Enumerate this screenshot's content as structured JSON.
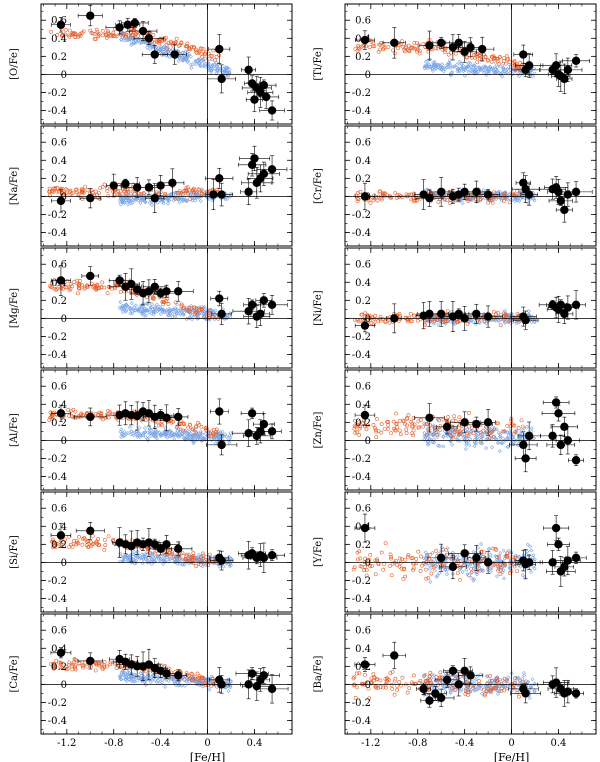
{
  "colors": {
    "thin_disk": "#7aa6e8",
    "thick_disk": "#e8602c",
    "star": "#000000"
  },
  "x_axis": {
    "label": "[Fe/H]",
    "range": [
      -1.42,
      0.72
    ],
    "ticks": [
      -1.2,
      -0.8,
      -0.4,
      0,
      0.4
    ],
    "tick_labels": [
      "-1.2",
      "-0.8",
      "-0.4",
      "0",
      "0.4"
    ]
  },
  "y_axis": {
    "range": [
      -0.55,
      0.78
    ],
    "ticks": [
      -0.4,
      -0.2,
      0,
      0.2,
      0.4,
      0.6
    ],
    "tick_labels": [
      "-0.4",
      "-0.2",
      "0",
      "0.2",
      "0.4",
      "0.6"
    ]
  },
  "chart_data": [
    {
      "type": "scatter",
      "panel": "O",
      "ylabel": "[O/Fe]",
      "stars": [
        [
          -1.25,
          0.55
        ],
        [
          -1.0,
          0.65
        ],
        [
          -0.75,
          0.52
        ],
        [
          -0.68,
          0.55
        ],
        [
          -0.62,
          0.57
        ],
        [
          -0.55,
          0.48
        ],
        [
          -0.5,
          0.4
        ],
        [
          -0.45,
          0.22
        ],
        [
          -0.28,
          0.22
        ],
        [
          0.1,
          0.28
        ],
        [
          0.12,
          -0.05
        ],
        [
          0.35,
          0.05
        ],
        [
          0.38,
          -0.1
        ],
        [
          0.4,
          -0.28
        ],
        [
          0.42,
          -0.15
        ],
        [
          0.45,
          -0.2
        ],
        [
          0.48,
          -0.12
        ],
        [
          0.5,
          -0.25
        ],
        [
          0.55,
          -0.4
        ]
      ]
    },
    {
      "type": "scatter",
      "panel": "Ti",
      "ylabel": "[Ti/Fe]",
      "stars": [
        [
          -1.25,
          0.38
        ],
        [
          -1.0,
          0.35
        ],
        [
          -0.7,
          0.32
        ],
        [
          -0.6,
          0.35
        ],
        [
          -0.5,
          0.3
        ],
        [
          -0.45,
          0.35
        ],
        [
          -0.4,
          0.25
        ],
        [
          -0.35,
          0.3
        ],
        [
          -0.25,
          0.28
        ],
        [
          0.1,
          0.22
        ],
        [
          0.12,
          0.05
        ],
        [
          0.15,
          0.1
        ],
        [
          0.35,
          0.05
        ],
        [
          0.38,
          0.1
        ],
        [
          0.4,
          0.0
        ],
        [
          0.42,
          -0.02
        ],
        [
          0.45,
          -0.05
        ],
        [
          0.48,
          0.05
        ],
        [
          0.55,
          0.15
        ]
      ]
    },
    {
      "type": "scatter",
      "panel": "Na",
      "ylabel": "[Na/Fe]",
      "stars": [
        [
          -1.25,
          -0.05
        ],
        [
          -1.0,
          -0.02
        ],
        [
          -0.8,
          0.12
        ],
        [
          -0.7,
          0.14
        ],
        [
          -0.6,
          0.1
        ],
        [
          -0.5,
          0.1
        ],
        [
          -0.45,
          -0.02
        ],
        [
          -0.4,
          0.12
        ],
        [
          -0.3,
          0.15
        ],
        [
          0.05,
          0.02
        ],
        [
          0.1,
          0.2
        ],
        [
          0.12,
          0.02
        ],
        [
          0.35,
          0.05
        ],
        [
          0.38,
          0.35
        ],
        [
          0.4,
          0.42
        ],
        [
          0.42,
          0.15
        ],
        [
          0.45,
          0.2
        ],
        [
          0.48,
          0.25
        ],
        [
          0.55,
          0.3
        ]
      ]
    },
    {
      "type": "scatter",
      "panel": "Cr",
      "ylabel": "[Cr/Fe]",
      "stars": [
        [
          -1.25,
          0.0
        ],
        [
          -0.75,
          0.02
        ],
        [
          -0.7,
          -0.02
        ],
        [
          -0.6,
          0.05
        ],
        [
          -0.5,
          0.0
        ],
        [
          -0.45,
          0.02
        ],
        [
          -0.4,
          0.05
        ],
        [
          -0.3,
          0.05
        ],
        [
          -0.2,
          0.02
        ],
        [
          0.1,
          0.15
        ],
        [
          0.12,
          0.08
        ],
        [
          0.15,
          0.02
        ],
        [
          0.35,
          0.08
        ],
        [
          0.38,
          0.1
        ],
        [
          0.4,
          0.05
        ],
        [
          0.42,
          -0.05
        ],
        [
          0.45,
          -0.15
        ],
        [
          0.48,
          0.02
        ],
        [
          0.55,
          0.05
        ]
      ]
    },
    {
      "type": "scatter",
      "panel": "Mg",
      "ylabel": "[Mg/Fe]",
      "stars": [
        [
          -1.25,
          0.42
        ],
        [
          -1.0,
          0.47
        ],
        [
          -0.75,
          0.42
        ],
        [
          -0.7,
          0.35
        ],
        [
          -0.65,
          0.38
        ],
        [
          -0.6,
          0.32
        ],
        [
          -0.55,
          0.28
        ],
        [
          -0.5,
          0.3
        ],
        [
          -0.45,
          0.35
        ],
        [
          -0.4,
          0.28
        ],
        [
          -0.35,
          0.3
        ],
        [
          -0.25,
          0.3
        ],
        [
          0.1,
          0.22
        ],
        [
          0.12,
          0.05
        ],
        [
          0.35,
          0.08
        ],
        [
          0.38,
          0.15
        ],
        [
          0.42,
          0.02
        ],
        [
          0.45,
          0.05
        ],
        [
          0.48,
          0.2
        ],
        [
          0.55,
          0.15
        ]
      ]
    },
    {
      "type": "scatter",
      "panel": "Ni",
      "ylabel": "[Ni/Fe]",
      "stars": [
        [
          -1.25,
          -0.08
        ],
        [
          -1.0,
          0.0
        ],
        [
          -0.75,
          0.03
        ],
        [
          -0.7,
          0.05
        ],
        [
          -0.6,
          0.05
        ],
        [
          -0.5,
          0.02
        ],
        [
          -0.45,
          0.05
        ],
        [
          -0.4,
          0.0
        ],
        [
          -0.3,
          0.05
        ],
        [
          -0.2,
          0.02
        ],
        [
          0.1,
          0.02
        ],
        [
          0.12,
          -0.02
        ],
        [
          0.35,
          0.15
        ],
        [
          0.38,
          0.12
        ],
        [
          0.4,
          0.1
        ],
        [
          0.42,
          0.15
        ],
        [
          0.45,
          0.05
        ],
        [
          0.48,
          0.12
        ],
        [
          0.55,
          0.15
        ]
      ]
    },
    {
      "type": "scatter",
      "panel": "Al",
      "ylabel": "[Al/Fe]",
      "stars": [
        [
          -1.25,
          0.3
        ],
        [
          -1.0,
          0.26
        ],
        [
          -0.75,
          0.28
        ],
        [
          -0.7,
          0.3
        ],
        [
          -0.65,
          0.28
        ],
        [
          -0.6,
          0.27
        ],
        [
          -0.55,
          0.32
        ],
        [
          -0.5,
          0.3
        ],
        [
          -0.45,
          0.26
        ],
        [
          -0.4,
          0.28
        ],
        [
          -0.35,
          0.25
        ],
        [
          -0.25,
          0.26
        ],
        [
          0.1,
          0.32
        ],
        [
          0.12,
          -0.05
        ],
        [
          0.35,
          0.08
        ],
        [
          0.38,
          0.3
        ],
        [
          0.42,
          0.05
        ],
        [
          0.45,
          0.1
        ],
        [
          0.48,
          0.18
        ],
        [
          0.55,
          0.1
        ]
      ]
    },
    {
      "type": "scatter",
      "panel": "Zn",
      "ylabel": "[Zn/Fe]",
      "stars": [
        [
          -1.25,
          0.28
        ],
        [
          -0.7,
          0.25
        ],
        [
          -0.55,
          0.15
        ],
        [
          -0.4,
          0.2
        ],
        [
          -0.3,
          0.18
        ],
        [
          -0.2,
          0.2
        ],
        [
          0.1,
          -0.05
        ],
        [
          0.12,
          -0.2
        ],
        [
          0.15,
          0.05
        ],
        [
          0.35,
          0.05
        ],
        [
          0.38,
          0.42
        ],
        [
          0.4,
          0.3
        ],
        [
          0.42,
          -0.05
        ],
        [
          0.45,
          0.15
        ],
        [
          0.48,
          0.0
        ],
        [
          0.55,
          -0.22
        ]
      ]
    },
    {
      "type": "scatter",
      "panel": "Si",
      "ylabel": "[Si/Fe]",
      "stars": [
        [
          -1.25,
          0.3
        ],
        [
          -1.0,
          0.35
        ],
        [
          -0.75,
          0.22
        ],
        [
          -0.7,
          0.2
        ],
        [
          -0.65,
          0.18
        ],
        [
          -0.6,
          0.22
        ],
        [
          -0.55,
          0.2
        ],
        [
          -0.5,
          0.22
        ],
        [
          -0.45,
          0.2
        ],
        [
          -0.4,
          0.15
        ],
        [
          -0.35,
          0.2
        ],
        [
          -0.25,
          0.15
        ],
        [
          0.1,
          0.05
        ],
        [
          0.12,
          0.02
        ],
        [
          0.35,
          0.08
        ],
        [
          0.38,
          0.1
        ],
        [
          0.42,
          0.05
        ],
        [
          0.45,
          0.08
        ],
        [
          0.48,
          0.05
        ],
        [
          0.55,
          0.08
        ]
      ]
    },
    {
      "type": "scatter",
      "panel": "Y",
      "ylabel": "[Y/Fe]",
      "stars": [
        [
          -1.25,
          0.38
        ],
        [
          -0.6,
          0.05
        ],
        [
          -0.5,
          -0.05
        ],
        [
          -0.4,
          0.1
        ],
        [
          -0.3,
          0.05
        ],
        [
          -0.2,
          0.0
        ],
        [
          0.1,
          0.02
        ],
        [
          0.12,
          -0.02
        ],
        [
          0.15,
          0.0
        ],
        [
          0.35,
          0.0
        ],
        [
          0.38,
          0.38
        ],
        [
          0.4,
          0.2
        ],
        [
          0.42,
          -0.1
        ],
        [
          0.45,
          -0.05
        ],
        [
          0.48,
          0.02
        ],
        [
          0.55,
          0.05
        ]
      ]
    },
    {
      "type": "scatter",
      "panel": "Ca",
      "ylabel": "[Ca/Fe]",
      "stars": [
        [
          -1.25,
          0.35
        ],
        [
          -1.0,
          0.26
        ],
        [
          -0.75,
          0.28
        ],
        [
          -0.7,
          0.25
        ],
        [
          -0.65,
          0.22
        ],
        [
          -0.6,
          0.2
        ],
        [
          -0.55,
          0.2
        ],
        [
          -0.5,
          0.22
        ],
        [
          -0.45,
          0.18
        ],
        [
          -0.4,
          0.15
        ],
        [
          -0.35,
          0.12
        ],
        [
          -0.25,
          0.1
        ],
        [
          0.1,
          0.05
        ],
        [
          0.12,
          0.0
        ],
        [
          0.35,
          0.0
        ],
        [
          0.38,
          0.12
        ],
        [
          0.42,
          -0.02
        ],
        [
          0.45,
          0.05
        ],
        [
          0.48,
          0.1
        ],
        [
          0.55,
          -0.05
        ]
      ]
    },
    {
      "type": "scatter",
      "panel": "Ba",
      "ylabel": "[Ba/Fe]",
      "stars": [
        [
          -1.25,
          0.22
        ],
        [
          -1.0,
          0.32
        ],
        [
          -0.75,
          -0.05
        ],
        [
          -0.7,
          -0.18
        ],
        [
          -0.65,
          -0.1
        ],
        [
          -0.6,
          -0.15
        ],
        [
          -0.55,
          0.05
        ],
        [
          -0.5,
          0.15
        ],
        [
          -0.45,
          0.0
        ],
        [
          -0.4,
          0.15
        ],
        [
          -0.35,
          0.1
        ],
        [
          0.1,
          -0.05
        ],
        [
          0.12,
          -0.1
        ],
        [
          0.35,
          0.0
        ],
        [
          0.38,
          0.02
        ],
        [
          0.42,
          -0.05
        ],
        [
          0.45,
          -0.1
        ],
        [
          0.48,
          -0.08
        ],
        [
          0.55,
          -0.1
        ]
      ]
    }
  ]
}
